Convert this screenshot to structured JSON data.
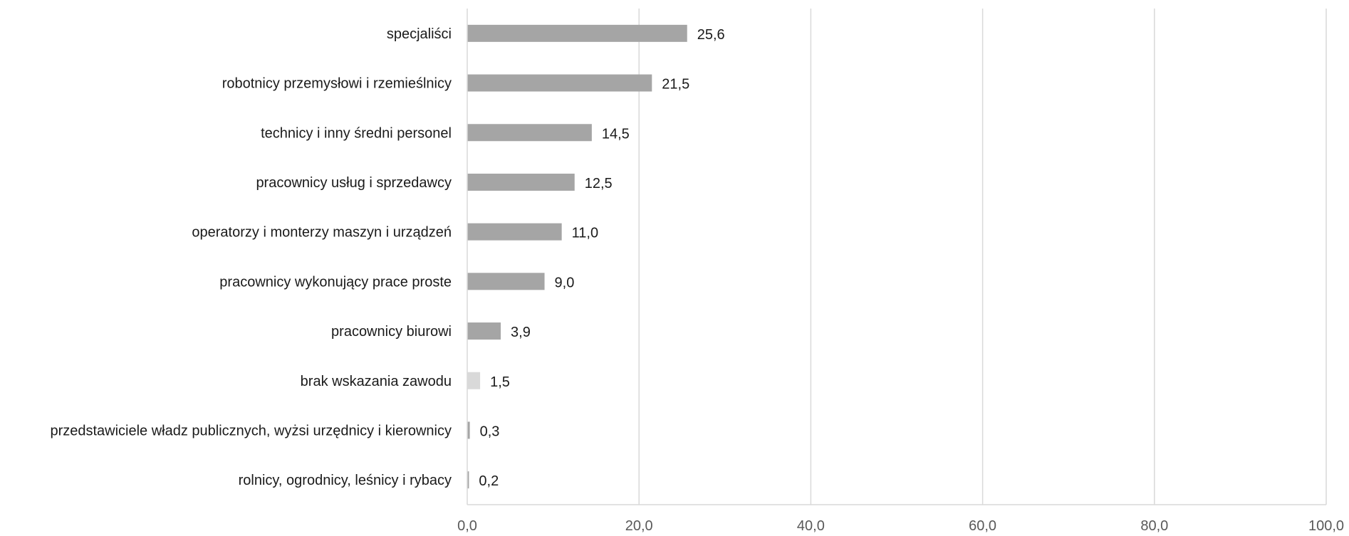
{
  "chart_data": {
    "type": "bar",
    "orientation": "horizontal",
    "categories": [
      "specjaliści",
      "robotnicy przemysłowi i rzemieślnicy",
      "technicy i inny średni personel",
      "pracownicy usług i sprzedawcy",
      "operatorzy i monterzy maszyn i urządzeń",
      "pracownicy wykonujący prace proste",
      "pracownicy biurowi",
      "brak wskazania zawodu",
      "przedstawiciele władz publicznych, wyżsi urzędnicy i kierownicy",
      "rolnicy, ogrodnicy, leśnicy i rybacy"
    ],
    "values": [
      25.6,
      21.5,
      14.5,
      12.5,
      11.0,
      9.0,
      3.9,
      1.5,
      0.3,
      0.2
    ],
    "value_labels": [
      "25,6",
      "21,5",
      "14,5",
      "12,5",
      "11,0",
      "9,0",
      "3,9",
      "1,5",
      "0,3",
      "0,2"
    ],
    "bar_colors": [
      "#a5a5a5",
      "#a5a5a5",
      "#a5a5a5",
      "#a5a5a5",
      "#a5a5a5",
      "#a5a5a5",
      "#a5a5a5",
      "#d9d9d9",
      "#a5a5a5",
      "#a5a5a5"
    ],
    "xlim": [
      0,
      100
    ],
    "x_ticks": [
      0,
      20,
      40,
      60,
      80,
      100
    ],
    "x_tick_labels": [
      "0,0",
      "20,0",
      "40,0",
      "60,0",
      "80,0",
      "100,0"
    ],
    "grid": "vertical",
    "title": "",
    "xlabel": "",
    "ylabel": ""
  }
}
